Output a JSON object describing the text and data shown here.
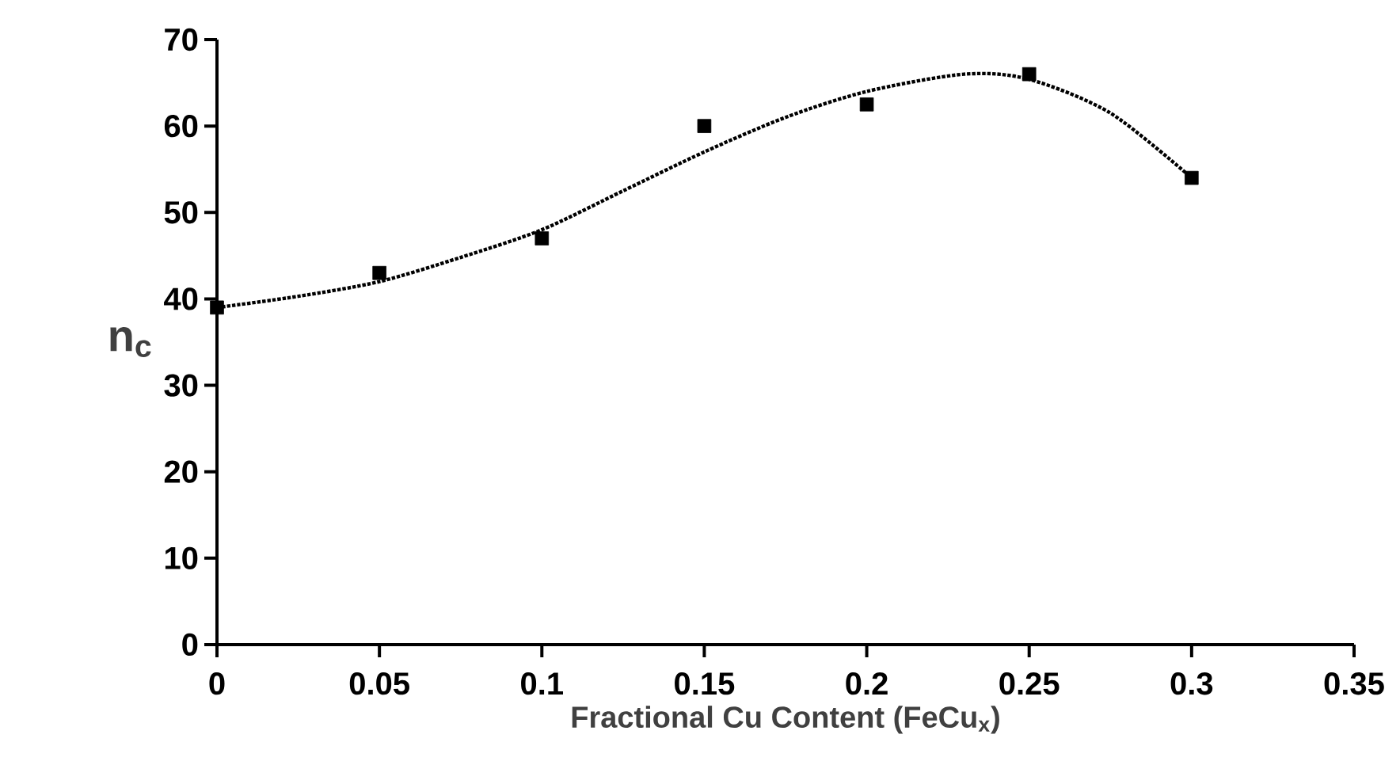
{
  "chart_data": {
    "type": "scatter",
    "xlabel": "Fractional Cu Content (FeCu$_{x}$)",
    "ylabel": "n$_{c}$",
    "xlim": [
      0,
      0.35
    ],
    "ylim": [
      0,
      70
    ],
    "xticks": [
      0,
      0.05,
      0.1,
      0.15,
      0.2,
      0.25,
      0.3,
      0.35
    ],
    "yticks": [
      0,
      10,
      20,
      30,
      40,
      50,
      60,
      70
    ],
    "grid": false,
    "series": [
      {
        "type": "line",
        "line_style": "dotted",
        "marker": "none",
        "color": "#000000",
        "x": [
          0,
          0.025,
          0.05,
          0.075,
          0.1,
          0.125,
          0.15,
          0.175,
          0.2,
          0.23,
          0.25,
          0.275,
          0.3
        ],
        "values": [
          39,
          40.3,
          42,
          44.8,
          48,
          52.5,
          57,
          61,
          64,
          66,
          65.4,
          61.5,
          54
        ]
      },
      {
        "marker": "square",
        "color": "#000000",
        "x": [
          0,
          0.05,
          0.1,
          0.15,
          0.2,
          0.25,
          0.3
        ],
        "values": [
          39,
          43,
          47,
          60,
          62.5,
          66,
          54
        ]
      }
    ]
  }
}
